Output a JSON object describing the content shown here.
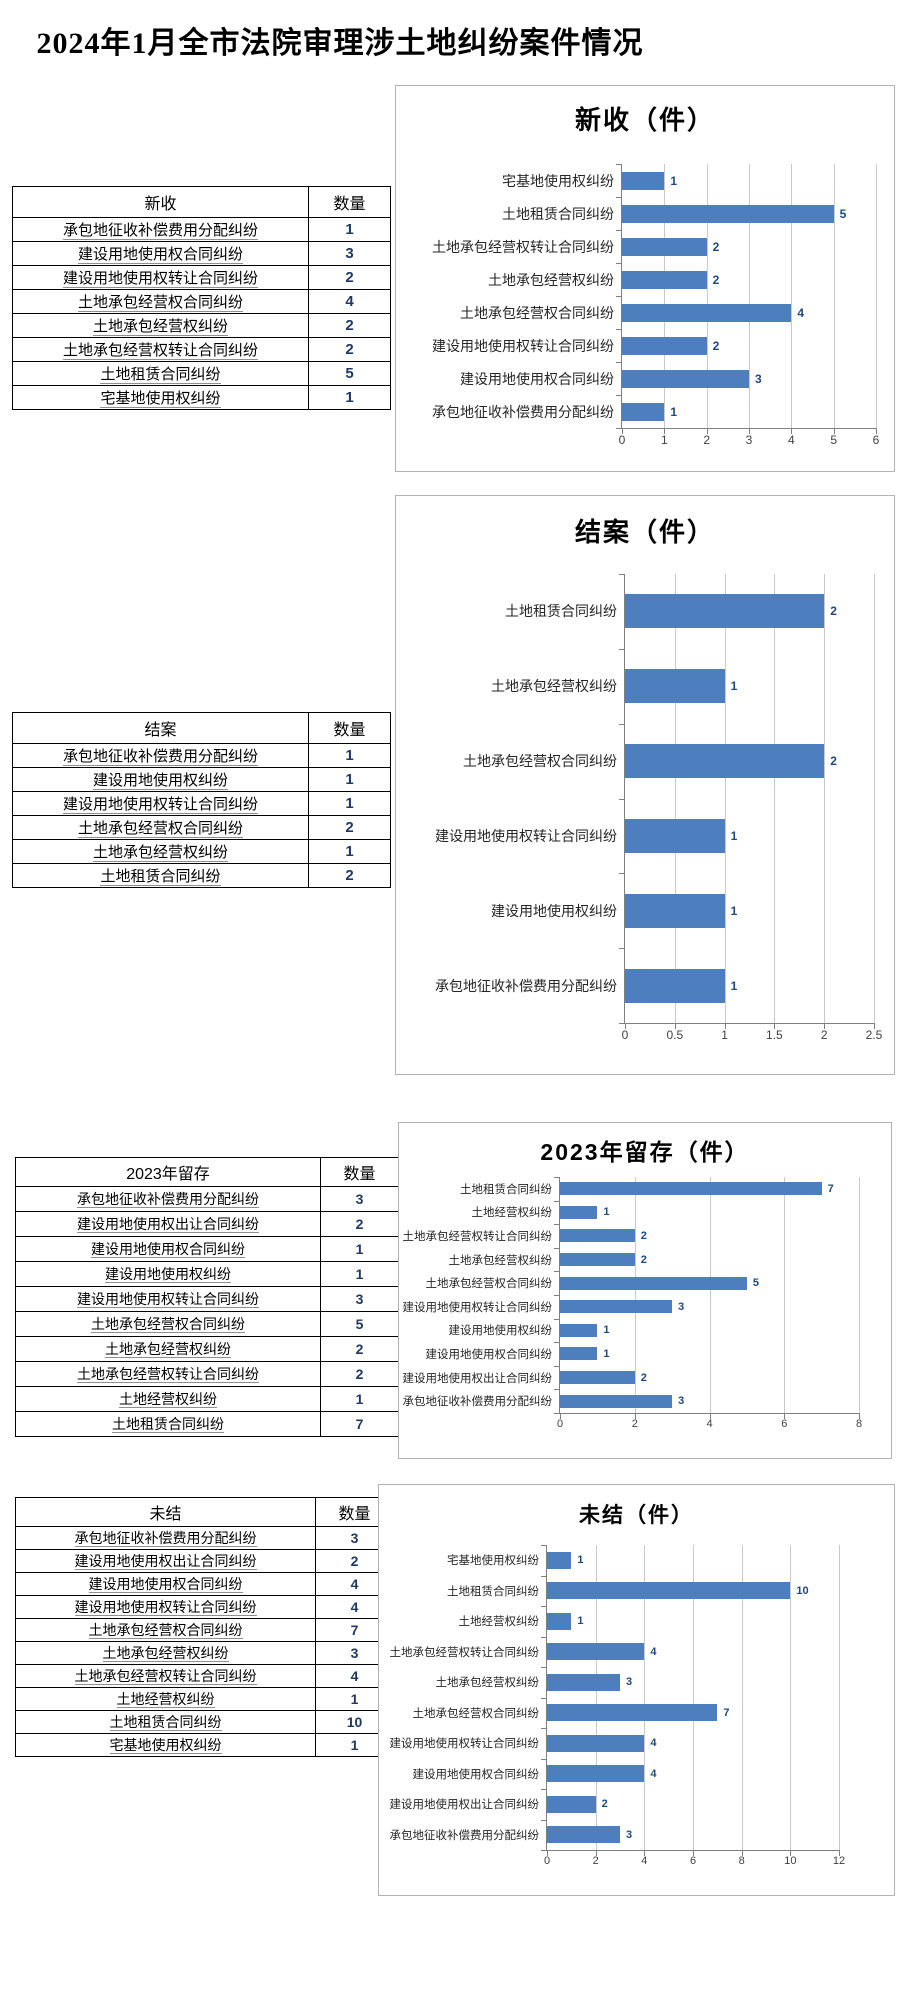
{
  "page": {
    "title": "2024年1月全市法院审理涉土地纠纷案件情况"
  },
  "colors": {
    "bar": "#4D7EBD",
    "bar_value_label": "#1F497D",
    "table_number": "#1F3864",
    "gridline": "#C9C9C9",
    "chart_border": "#B3B3B3"
  },
  "tables": [
    {
      "header": "新收",
      "qty_header": "数量",
      "rows": [
        {
          "label": "承包地征收补偿费用分配纠纷",
          "value": "1"
        },
        {
          "label": "建设用地使用权合同纠纷",
          "value": "3"
        },
        {
          "label": "建设用地使用权转让合同纠纷",
          "value": "2"
        },
        {
          "label": "土地承包经营权合同纠纷",
          "value": "4"
        },
        {
          "label": "土地承包经营权纠纷",
          "value": "2"
        },
        {
          "label": "土地承包经营权转让合同纠纷",
          "value": "2"
        },
        {
          "label": "土地租赁合同纠纷",
          "value": "5"
        },
        {
          "label": "宅基地使用权纠纷",
          "value": "1"
        }
      ]
    },
    {
      "header": "结案",
      "qty_header": "数量",
      "rows": [
        {
          "label": "承包地征收补偿费用分配纠纷",
          "value": "1"
        },
        {
          "label": "建设用地使用权纠纷",
          "value": "1"
        },
        {
          "label": "建设用地使用权转让合同纠纷",
          "value": "1"
        },
        {
          "label": "土地承包经营权合同纠纷",
          "value": "2"
        },
        {
          "label": "土地承包经营权纠纷",
          "value": "1"
        },
        {
          "label": "土地租赁合同纠纷",
          "value": "2"
        }
      ]
    },
    {
      "header": "2023年留存",
      "qty_header": "数量",
      "rows": [
        {
          "label": "承包地征收补偿费用分配纠纷",
          "value": "3"
        },
        {
          "label": "建设用地使用权出让合同纠纷",
          "value": "2"
        },
        {
          "label": "建设用地使用权合同纠纷",
          "value": "1"
        },
        {
          "label": "建设用地使用权纠纷",
          "value": "1"
        },
        {
          "label": "建设用地使用权转让合同纠纷",
          "value": "3"
        },
        {
          "label": "土地承包经营权合同纠纷",
          "value": "5"
        },
        {
          "label": "土地承包经营权纠纷",
          "value": "2"
        },
        {
          "label": "土地承包经营权转让合同纠纷",
          "value": "2"
        },
        {
          "label": "土地经营权纠纷",
          "value": "1"
        },
        {
          "label": "土地租赁合同纠纷",
          "value": "7"
        }
      ]
    },
    {
      "header": "未结",
      "qty_header": "数量",
      "rows": [
        {
          "label": "承包地征收补偿费用分配纠纷",
          "value": "3"
        },
        {
          "label": "建设用地使用权出让合同纠纷",
          "value": "2"
        },
        {
          "label": "建设用地使用权合同纠纷",
          "value": "4"
        },
        {
          "label": "建设用地使用权转让合同纠纷",
          "value": "4"
        },
        {
          "label": "土地承包经营权合同纠纷",
          "value": "7"
        },
        {
          "label": "土地承包经营权纠纷",
          "value": "3"
        },
        {
          "label": "土地承包经营权转让合同纠纷",
          "value": "4"
        },
        {
          "label": "土地经营权纠纷",
          "value": "1"
        },
        {
          "label": "土地租赁合同纠纷",
          "value": "10"
        },
        {
          "label": "宅基地使用权纠纷",
          "value": "1"
        }
      ]
    }
  ],
  "chart_data": [
    {
      "type": "bar",
      "orientation": "horizontal",
      "title": "新收（件）",
      "categories": [
        "宅基地使用权纠纷",
        "土地租赁合同纠纷",
        "土地承包经营权转让合同纠纷",
        "土地承包经营权纠纷",
        "土地承包经营权合同纠纷",
        "建设用地使用权转让合同纠纷",
        "建设用地使用权合同纠纷",
        "承包地征收补偿费用分配纠纷"
      ],
      "values": [
        1,
        5,
        2,
        2,
        4,
        2,
        3,
        1
      ],
      "xticks": [
        "0",
        "1",
        "2",
        "3",
        "4",
        "5",
        "6"
      ],
      "xmax": 6,
      "grid": true,
      "legend": false
    },
    {
      "type": "bar",
      "orientation": "horizontal",
      "title": "结案（件）",
      "categories": [
        "土地租赁合同纠纷",
        "土地承包经营权纠纷",
        "土地承包经营权合同纠纷",
        "建设用地使用权转让合同纠纷",
        "建设用地使用权纠纷",
        "承包地征收补偿费用分配纠纷"
      ],
      "values": [
        2,
        1,
        2,
        1,
        1,
        1
      ],
      "xticks": [
        "0",
        "0.5",
        "1",
        "1.5",
        "2",
        "2.5"
      ],
      "xmax": 2.5,
      "grid": true,
      "legend": false
    },
    {
      "type": "bar",
      "orientation": "horizontal",
      "title": "2023年留存（件）",
      "categories": [
        "土地租赁合同纠纷",
        "土地经营权纠纷",
        "土地承包经营权转让合同纠纷",
        "土地承包经营权纠纷",
        "土地承包经营权合同纠纷",
        "建设用地使用权转让合同纠纷",
        "建设用地使用权纠纷",
        "建设用地使用权合同纠纷",
        "建设用地使用权出让合同纠纷",
        "承包地征收补偿费用分配纠纷"
      ],
      "values": [
        7,
        1,
        2,
        2,
        5,
        3,
        1,
        1,
        2,
        3
      ],
      "xticks": [
        "0",
        "2",
        "4",
        "6",
        "8"
      ],
      "xmax": 8,
      "grid": true,
      "legend": false
    },
    {
      "type": "bar",
      "orientation": "horizontal",
      "title": "未结（件）",
      "categories": [
        "宅基地使用权纠纷",
        "土地租赁合同纠纷",
        "土地经营权纠纷",
        "土地承包经营权转让合同纠纷",
        "土地承包经营权纠纷",
        "土地承包经营权合同纠纷",
        "建设用地使用权转让合同纠纷",
        "建设用地使用权合同纠纷",
        "建设用地使用权出让合同纠纷",
        "承包地征收补偿费用分配纠纷"
      ],
      "values": [
        1,
        10,
        1,
        4,
        3,
        7,
        4,
        4,
        2,
        3
      ],
      "xticks": [
        "0",
        "2",
        "4",
        "6",
        "8",
        "10",
        "12"
      ],
      "xmax": 12,
      "grid": true,
      "legend": false
    }
  ]
}
